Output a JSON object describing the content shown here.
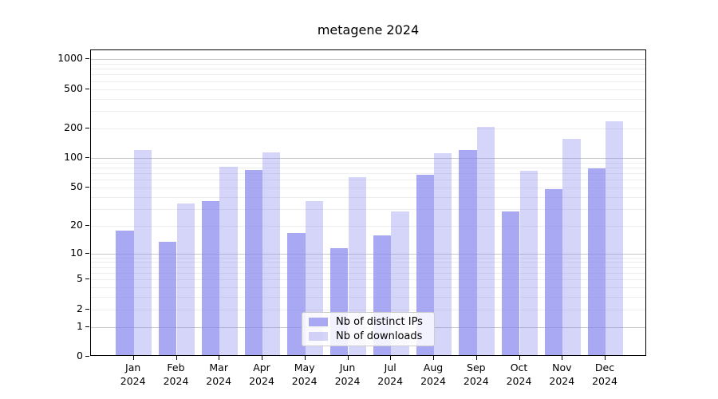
{
  "title": "metagene 2024",
  "chart_data": {
    "type": "bar",
    "title": "metagene 2024",
    "categories": [
      "Jan",
      "Feb",
      "Mar",
      "Apr",
      "May",
      "Jun",
      "Jul",
      "Aug",
      "Sep",
      "Oct",
      "Nov",
      "Dec"
    ],
    "year": "2024",
    "series": [
      {
        "name": "Nb of distinct IPs",
        "values": [
          17,
          13,
          35,
          73,
          16,
          11,
          15,
          65,
          117,
          27,
          46,
          76
        ]
      },
      {
        "name": "Nb of downloads",
        "values": [
          117,
          33,
          78,
          110,
          35,
          61,
          27,
          107,
          200,
          71,
          151,
          228
        ]
      }
    ],
    "xlabel": "",
    "ylabel": "",
    "y_scale": "symlog-log1p",
    "ylim": [
      0,
      1230
    ],
    "yticks": [
      0,
      1,
      2,
      5,
      10,
      20,
      50,
      100,
      200,
      500,
      1000
    ],
    "grid": "horizontal, major at powers of 10, minor at 2-9 per decade",
    "legend_position": "bottom-center-inside"
  },
  "colors": {
    "base": "#8888ee",
    "bar_ips": "rgba(136,136,238,0.72)",
    "bar_downloads": "rgba(136,136,238,0.35)",
    "grid_major": "#c9c9c9",
    "grid_minor": "#ededed",
    "axis": "#000000",
    "background": "#ffffff"
  }
}
